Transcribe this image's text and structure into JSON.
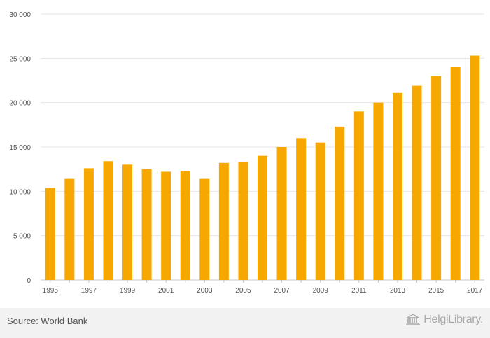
{
  "chart_data": {
    "type": "bar",
    "categories": [
      "1995",
      "1996",
      "1997",
      "1998",
      "1999",
      "2000",
      "2001",
      "2002",
      "2003",
      "2004",
      "2005",
      "2006",
      "2007",
      "2008",
      "2009",
      "2010",
      "2011",
      "2012",
      "2013",
      "2014",
      "2015",
      "2016",
      "2017"
    ],
    "values": [
      10400,
      11400,
      12600,
      13400,
      13000,
      12500,
      12200,
      12300,
      11400,
      13200,
      13300,
      14000,
      15000,
      16000,
      15500,
      17300,
      19000,
      20000,
      21100,
      21900,
      23000,
      24000,
      25300
    ],
    "x_tick_labels": [
      "1995",
      "1997",
      "1999",
      "2001",
      "2003",
      "2005",
      "2007",
      "2009",
      "2011",
      "2013",
      "2015",
      "2017"
    ],
    "y_ticks": [
      0,
      5000,
      10000,
      15000,
      20000,
      25000,
      30000
    ],
    "y_tick_labels": [
      "0",
      "5 000",
      "10 000",
      "15 000",
      "20 000",
      "25 000",
      "30 000"
    ],
    "ylim": [
      0,
      30000
    ],
    "bar_color": "#f7a800",
    "grid": true,
    "title": "",
    "xlabel": "",
    "ylabel": ""
  },
  "footer": {
    "source": "Source: World Bank",
    "logo_text": "HelgiLibrary."
  }
}
